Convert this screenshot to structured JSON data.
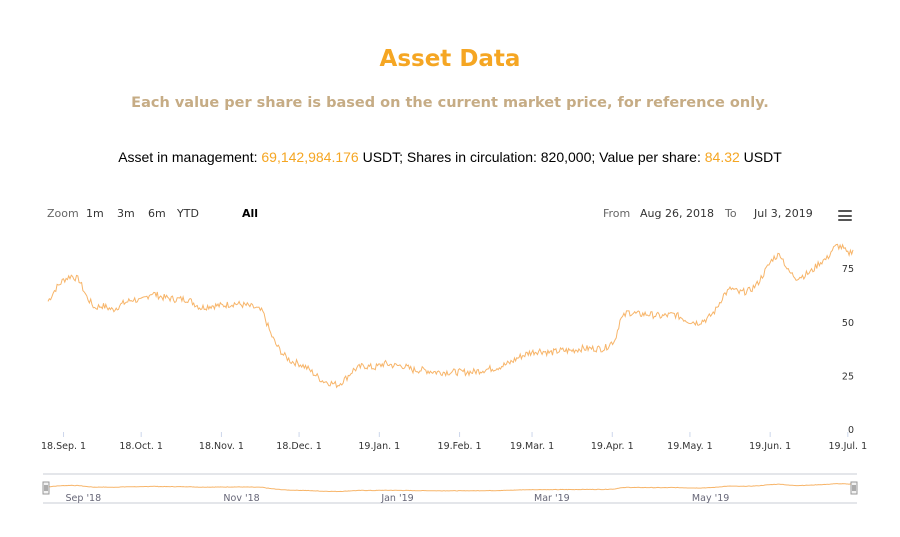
{
  "header": {
    "title": "Asset Data",
    "subtitle": "Each value per share is based on the current market price, for reference only."
  },
  "info": {
    "aum_label": "Asset in management: ",
    "aum_value": "69,142,984.176",
    "aum_unit": " USDT; Shares in circulation: 820,000; Value per share: ",
    "vps_value": "84.32",
    "vps_unit": " USDT"
  },
  "range_selector": {
    "zoom_label": "Zoom",
    "buttons": [
      "1m",
      "3m",
      "6m",
      "YTD",
      "All"
    ],
    "selected": "All",
    "from_label": "From",
    "from_value": "Aug 26, 2018",
    "to_label": "To",
    "to_value": "Jul 3, 2019"
  },
  "colors": {
    "accent": "#f5a623",
    "line": "#f7b56a",
    "subtitle": "#c6ac85"
  },
  "chart_data": {
    "type": "line",
    "title": "",
    "xlabel": "",
    "ylabel": "",
    "ylim": [
      0,
      90
    ],
    "yticks": [
      0,
      25,
      50,
      75
    ],
    "xlim": [
      "2018-08-26",
      "2019-07-03"
    ],
    "x_tick_labels": [
      {
        "date": "2018-09-01",
        "label": "18.Sep. 1"
      },
      {
        "date": "2018-10-01",
        "label": "18.Oct. 1"
      },
      {
        "date": "2018-11-01",
        "label": "18.Nov. 1"
      },
      {
        "date": "2018-12-01",
        "label": "18.Dec. 1"
      },
      {
        "date": "2019-01-01",
        "label": "19.Jan. 1"
      },
      {
        "date": "2019-02-01",
        "label": "19.Feb. 1"
      },
      {
        "date": "2019-03-01",
        "label": "19.Mar. 1"
      },
      {
        "date": "2019-04-01",
        "label": "19.Apr. 1"
      },
      {
        "date": "2019-05-01",
        "label": "19.May. 1"
      },
      {
        "date": "2019-06-01",
        "label": "19.Jun. 1"
      },
      {
        "date": "2019-07-01",
        "label": "19.Jul. 1"
      }
    ],
    "navigator_labels": [
      {
        "date": "2018-09-01",
        "label": "Sep '18"
      },
      {
        "date": "2018-11-01",
        "label": "Nov '18"
      },
      {
        "date": "2019-01-01",
        "label": "Jan '19"
      },
      {
        "date": "2019-03-01",
        "label": "Mar '19"
      },
      {
        "date": "2019-05-01",
        "label": "May '19"
      }
    ],
    "grid": false,
    "legend": "none",
    "series": [
      {
        "points": [
          [
            "2018-08-26",
            60
          ],
          [
            "2018-08-29",
            66
          ],
          [
            "2018-09-01",
            70
          ],
          [
            "2018-09-04",
            72
          ],
          [
            "2018-09-07",
            70
          ],
          [
            "2018-09-10",
            62
          ],
          [
            "2018-09-13",
            57
          ],
          [
            "2018-09-16",
            58
          ],
          [
            "2018-09-20",
            56
          ],
          [
            "2018-09-24",
            59
          ],
          [
            "2018-09-28",
            61
          ],
          [
            "2018-10-01",
            60
          ],
          [
            "2018-10-05",
            64
          ],
          [
            "2018-10-09",
            62
          ],
          [
            "2018-10-14",
            61
          ],
          [
            "2018-10-19",
            61
          ],
          [
            "2018-10-24",
            57
          ],
          [
            "2018-10-28",
            58
          ],
          [
            "2018-11-01",
            58
          ],
          [
            "2018-11-06",
            59
          ],
          [
            "2018-11-11",
            58
          ],
          [
            "2018-11-14",
            57
          ],
          [
            "2018-11-17",
            55
          ],
          [
            "2018-11-20",
            45
          ],
          [
            "2018-11-22",
            40
          ],
          [
            "2018-11-25",
            35
          ],
          [
            "2018-11-28",
            32
          ],
          [
            "2018-12-01",
            31
          ],
          [
            "2018-12-04",
            29
          ],
          [
            "2018-12-07",
            26
          ],
          [
            "2018-12-10",
            23
          ],
          [
            "2018-12-13",
            22
          ],
          [
            "2018-12-16",
            21
          ],
          [
            "2018-12-19",
            24
          ],
          [
            "2018-12-22",
            28
          ],
          [
            "2018-12-26",
            30
          ],
          [
            "2018-12-30",
            29
          ],
          [
            "2019-01-03",
            31
          ],
          [
            "2019-01-07",
            30
          ],
          [
            "2019-01-10",
            30
          ],
          [
            "2019-01-14",
            28
          ],
          [
            "2019-01-18",
            28
          ],
          [
            "2019-01-23",
            27
          ],
          [
            "2019-01-28",
            27
          ],
          [
            "2019-02-01",
            27
          ],
          [
            "2019-02-06",
            27
          ],
          [
            "2019-02-10",
            28
          ],
          [
            "2019-02-15",
            29
          ],
          [
            "2019-02-20",
            31
          ],
          [
            "2019-02-24",
            34
          ],
          [
            "2019-02-28",
            36
          ],
          [
            "2019-03-04",
            37
          ],
          [
            "2019-03-08",
            36
          ],
          [
            "2019-03-12",
            37
          ],
          [
            "2019-03-16",
            37
          ],
          [
            "2019-03-20",
            38
          ],
          [
            "2019-03-24",
            38
          ],
          [
            "2019-03-29",
            38
          ],
          [
            "2019-04-02",
            42
          ],
          [
            "2019-04-04",
            51
          ],
          [
            "2019-04-07",
            55
          ],
          [
            "2019-04-11",
            54
          ],
          [
            "2019-04-15",
            54
          ],
          [
            "2019-04-20",
            53
          ],
          [
            "2019-04-25",
            54
          ],
          [
            "2019-04-30",
            51
          ],
          [
            "2019-05-04",
            50
          ],
          [
            "2019-05-08",
            52
          ],
          [
            "2019-05-11",
            56
          ],
          [
            "2019-05-14",
            63
          ],
          [
            "2019-05-17",
            66
          ],
          [
            "2019-05-20",
            64
          ],
          [
            "2019-05-24",
            65
          ],
          [
            "2019-05-27",
            68
          ],
          [
            "2019-05-30",
            74
          ],
          [
            "2019-06-02",
            80
          ],
          [
            "2019-06-05",
            82
          ],
          [
            "2019-06-08",
            74
          ],
          [
            "2019-06-11",
            71
          ],
          [
            "2019-06-14",
            72
          ],
          [
            "2019-06-17",
            74
          ],
          [
            "2019-06-20",
            78
          ],
          [
            "2019-06-23",
            80
          ],
          [
            "2019-06-25",
            84
          ],
          [
            "2019-06-27",
            86
          ],
          [
            "2019-06-29",
            85
          ],
          [
            "2019-07-01",
            82
          ],
          [
            "2019-07-03",
            84
          ]
        ]
      }
    ]
  }
}
